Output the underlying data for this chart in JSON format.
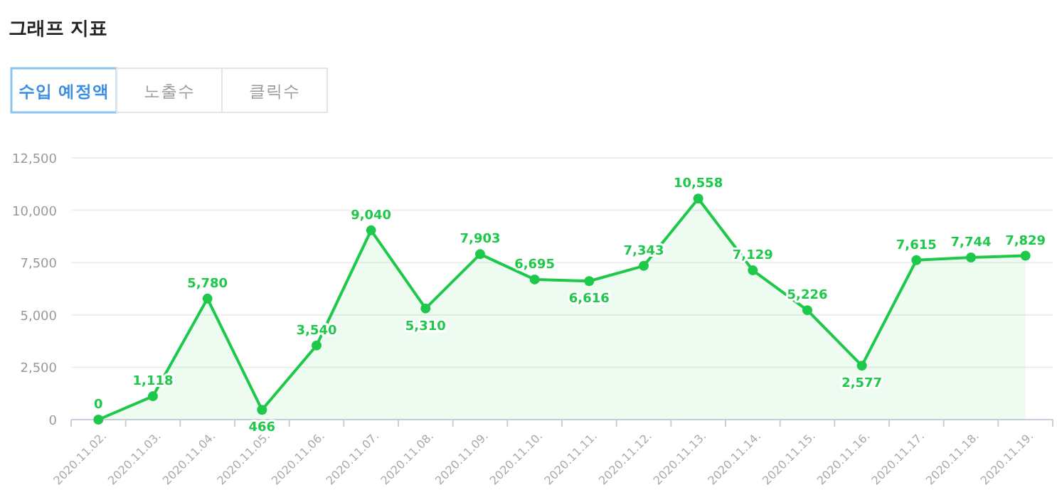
{
  "chart_data": {
    "type": "area",
    "title": "그래프 지표",
    "annotations": [
      "수입 예정액",
      "노출수",
      "클릭수"
    ],
    "categories": [
      "2020.11.02.",
      "2020.11.03.",
      "2020.11.04.",
      "2020.11.05.",
      "2020.11.06.",
      "2020.11.07.",
      "2020.11.08.",
      "2020.11.09.",
      "2020.11.10.",
      "2020.11.11.",
      "2020.11.12.",
      "2020.11.13.",
      "2020.11.14.",
      "2020.11.15.",
      "2020.11.16.",
      "2020.11.17.",
      "2020.11.18.",
      "2020.11.19."
    ],
    "values": [
      0,
      1118,
      5780,
      466,
      3540,
      9040,
      5310,
      7903,
      6695,
      6616,
      7343,
      10558,
      7129,
      5226,
      2577,
      7615,
      7744,
      7829
    ],
    "color": "#1ec84a",
    "ylim": [
      0,
      12500
    ],
    "yticks": [
      {
        "value": 0,
        "label": "0"
      },
      {
        "value": 2500,
        "label": "2,500"
      },
      {
        "value": 5000,
        "label": "5,000"
      },
      {
        "value": 7500,
        "label": "7,500"
      },
      {
        "value": 10000,
        "label": "10,000"
      },
      {
        "value": 12500,
        "label": "12,500"
      }
    ],
    "value_labels": [
      "0",
      "1,118",
      "5,780",
      "466",
      "3,540",
      "9,040",
      "5,310",
      "7,903",
      "6,695",
      "6,616",
      "7,343",
      "10,558",
      "7,129",
      "5,226",
      "2,577",
      "7,615",
      "7,744",
      "7,829"
    ],
    "grid": "y",
    "marker": "circle"
  }
}
